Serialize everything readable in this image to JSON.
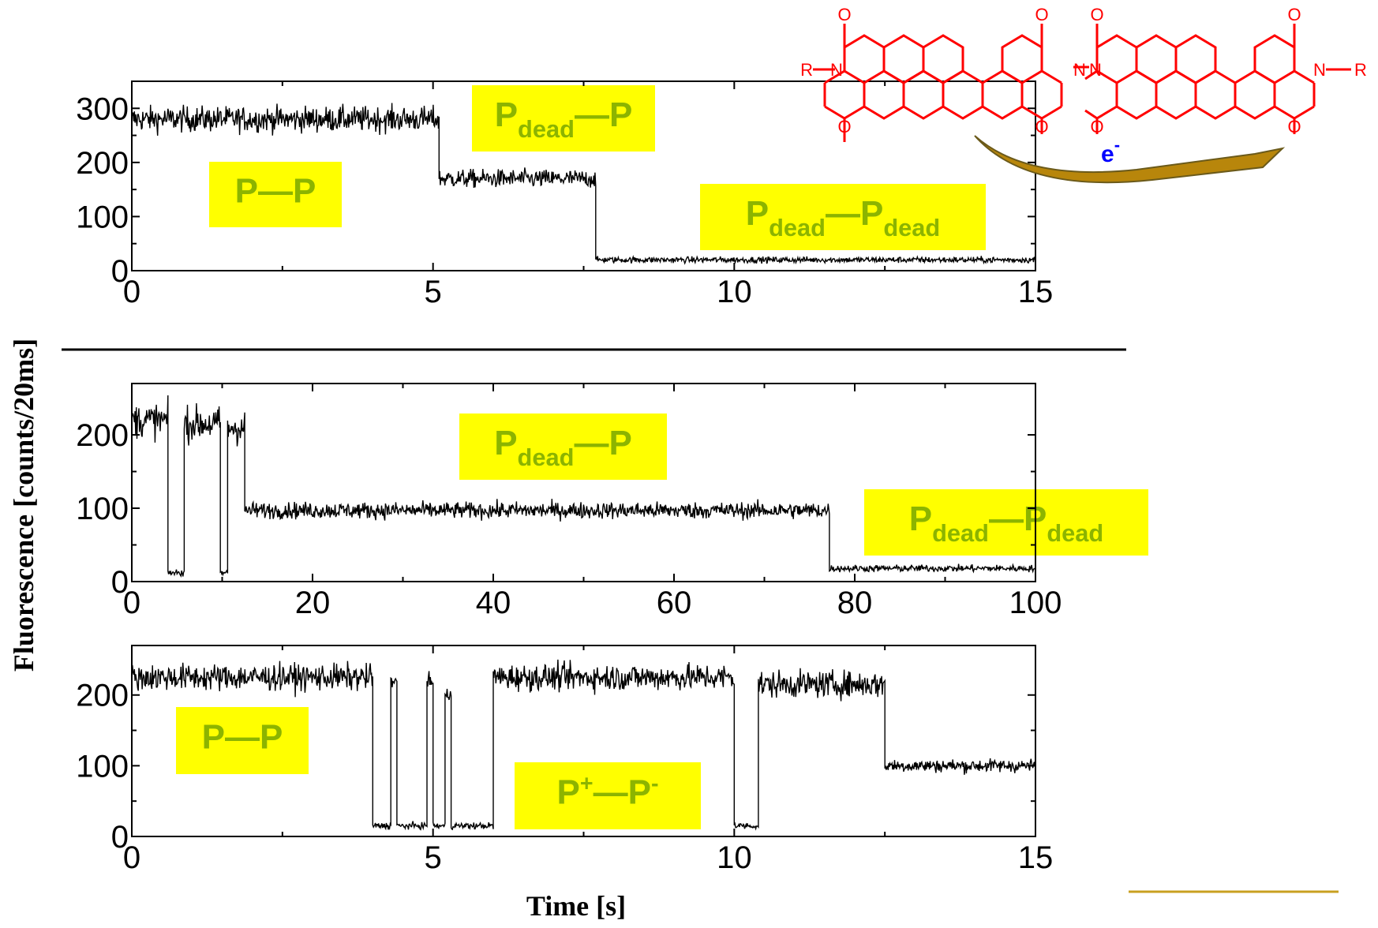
{
  "colors": {
    "trace": "#000000",
    "label_box": "#ffff00",
    "label_text": "#8cb400",
    "molecule": "#ff0000",
    "electron_label": "#0000ff",
    "arrow": "#b8860b"
  },
  "ylabel": "Fluorescence [counts/20ms]",
  "xlabel": "Time [s]",
  "molecule": {
    "r_left": "R",
    "r_right": "R",
    "n": "N",
    "o": "O",
    "electron": "e",
    "electron_sup": "-"
  },
  "chart_data": [
    {
      "type": "line",
      "xlim": [
        0,
        15
      ],
      "ylim": [
        0,
        350
      ],
      "xticks": [
        "0",
        "5",
        "10",
        "15"
      ],
      "yticks": [
        "0",
        "100",
        "200",
        "300"
      ],
      "segments": [
        {
          "x": [
            0,
            5.1
          ],
          "level": 280,
          "noise": 25
        },
        {
          "x": [
            5.1,
            7.7
          ],
          "level": 170,
          "noise": 18
        },
        {
          "x": [
            7.7,
            15
          ],
          "level": 20,
          "noise": 6
        }
      ],
      "labels": [
        {
          "main": "P—P",
          "sub": ""
        },
        {
          "main": "P",
          "sub": "dead",
          "tail": "—P",
          "tailsub": ""
        },
        {
          "main": "P",
          "sub": "dead",
          "tail": "—P",
          "tailsub": "dead"
        }
      ]
    },
    {
      "type": "line",
      "xlim": [
        0,
        100
      ],
      "ylim": [
        0,
        270
      ],
      "xticks": [
        "0",
        "20",
        "40",
        "60",
        "80",
        "100"
      ],
      "yticks": [
        "0",
        "100",
        "200"
      ],
      "segments": [
        {
          "x": [
            0,
            4.0
          ],
          "level": 220,
          "noise": 25
        },
        {
          "x": [
            4.0,
            5.8
          ],
          "level": 12,
          "noise": 5
        },
        {
          "x": [
            5.8,
            9.8
          ],
          "level": 215,
          "noise": 25
        },
        {
          "x": [
            9.8,
            10.6
          ],
          "level": 12,
          "noise": 5
        },
        {
          "x": [
            10.6,
            12.5
          ],
          "level": 210,
          "noise": 25
        },
        {
          "x": [
            12.5,
            77.2
          ],
          "level": 97,
          "noise": 12
        },
        {
          "x": [
            77.2,
            100
          ],
          "level": 18,
          "noise": 5
        }
      ],
      "labels": [
        {
          "main": "P",
          "sub": "dead",
          "tail": "—P",
          "tailsub": ""
        },
        {
          "main": "P",
          "sub": "dead",
          "tail": "—P",
          "tailsub": "dead"
        }
      ]
    },
    {
      "type": "line",
      "xlim": [
        0,
        15
      ],
      "ylim": [
        0,
        270
      ],
      "xticks": [
        "0",
        "5",
        "10",
        "15"
      ],
      "yticks": [
        "0",
        "100",
        "200"
      ],
      "segments": [
        {
          "x": [
            0,
            4.0
          ],
          "level": 225,
          "noise": 20
        },
        {
          "x": [
            4.0,
            4.3
          ],
          "level": 15,
          "noise": 5
        },
        {
          "x": [
            4.3,
            4.4
          ],
          "level": 220,
          "noise": 10
        },
        {
          "x": [
            4.4,
            4.9
          ],
          "level": 15,
          "noise": 5
        },
        {
          "x": [
            4.9,
            5.0
          ],
          "level": 220,
          "noise": 10
        },
        {
          "x": [
            5.0,
            5.2
          ],
          "level": 15,
          "noise": 5
        },
        {
          "x": [
            5.2,
            5.3
          ],
          "level": 200,
          "noise": 10
        },
        {
          "x": [
            5.3,
            6.0
          ],
          "level": 15,
          "noise": 5
        },
        {
          "x": [
            6.0,
            10.0
          ],
          "level": 225,
          "noise": 20
        },
        {
          "x": [
            10.0,
            10.4
          ],
          "level": 15,
          "noise": 5
        },
        {
          "x": [
            10.4,
            12.5
          ],
          "level": 215,
          "noise": 20
        },
        {
          "x": [
            12.5,
            15
          ],
          "level": 100,
          "noise": 10
        }
      ],
      "labels": [
        {
          "main": "P—P",
          "sub": ""
        },
        {
          "main": "P",
          "sup": "+",
          "tail": "—P",
          "tailsup": "-"
        }
      ]
    }
  ]
}
